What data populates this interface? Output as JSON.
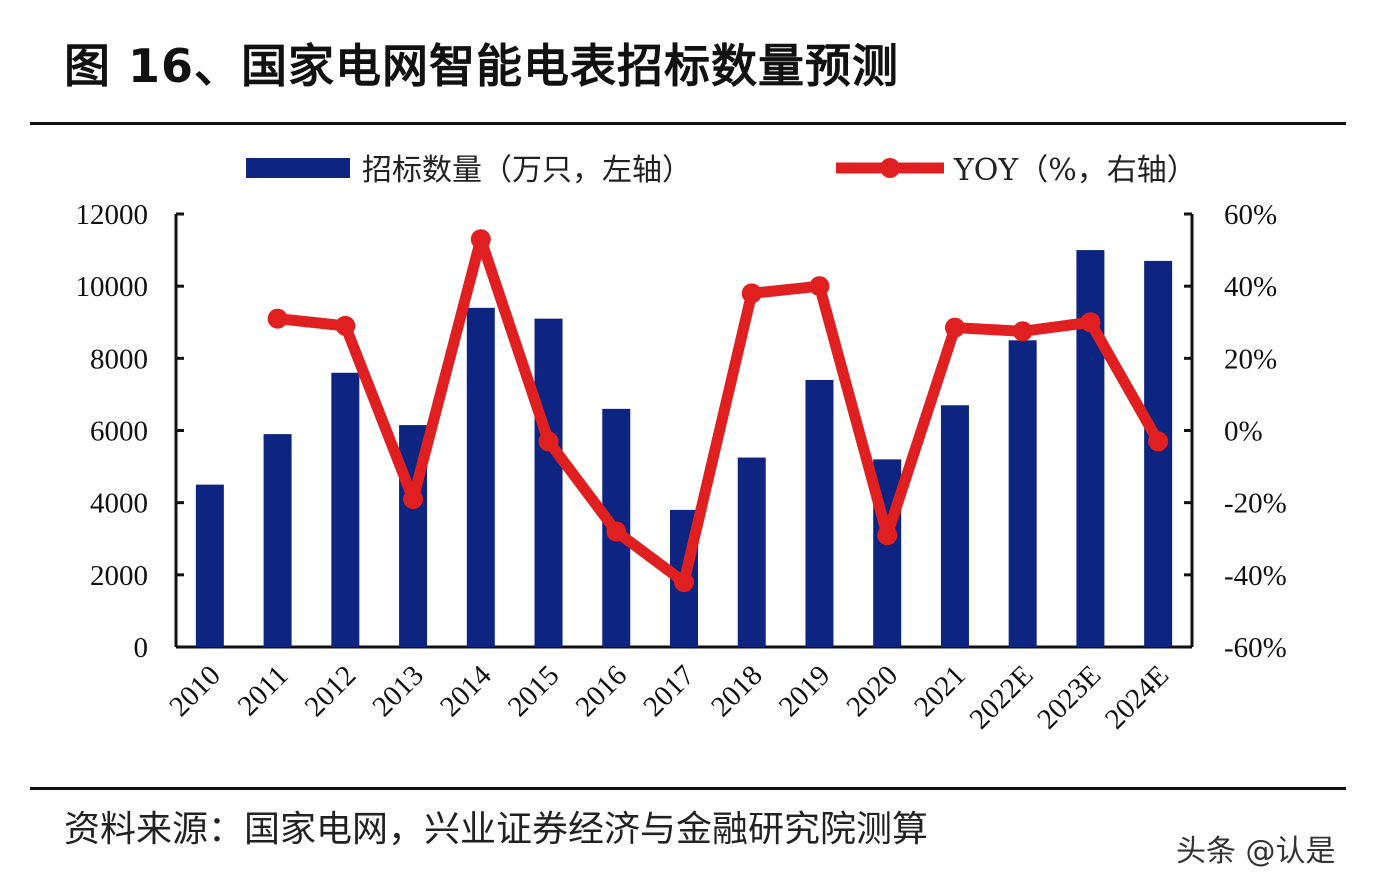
{
  "title": "图 16、国家电网智能电表招标数量预测",
  "source": "资料来源：国家电网，兴业证券经济与金融研究院测算",
  "watermark": "头条 @认是",
  "chart_data": {
    "type": "bar+line",
    "title": "图 16、国家电网智能电表招标数量预测",
    "categories": [
      "2010",
      "2011",
      "2012",
      "2013",
      "2014",
      "2015",
      "2016",
      "2017",
      "2018",
      "2019",
      "2020",
      "2021",
      "2022E",
      "2023E",
      "2024E"
    ],
    "series": [
      {
        "name": "招标数量（万只，左轴）",
        "type": "bar",
        "axis": "left",
        "color": "#0d2580",
        "values": [
          4500,
          5900,
          7600,
          6150,
          9400,
          9100,
          6600,
          3800,
          5250,
          7400,
          5200,
          6700,
          8500,
          11000,
          10700
        ]
      },
      {
        "name": "YOY（%，右轴）",
        "type": "line",
        "axis": "right",
        "color": "#e02020",
        "values": [
          null,
          31,
          29,
          -19,
          53,
          -3,
          -28,
          -42,
          38,
          40,
          -29,
          28.5,
          27.5,
          30,
          -3
        ]
      }
    ],
    "left_axis": {
      "ylim": [
        0,
        12000
      ],
      "ticks": [
        "0",
        "2000",
        "4000",
        "6000",
        "8000",
        "10000",
        "12000"
      ]
    },
    "right_axis": {
      "ylim": [
        -60,
        60
      ],
      "ticks": [
        "-60%",
        "-40%",
        "-20%",
        "0%",
        "20%",
        "40%",
        "60%"
      ]
    },
    "grid": false,
    "legend_position": "top"
  }
}
